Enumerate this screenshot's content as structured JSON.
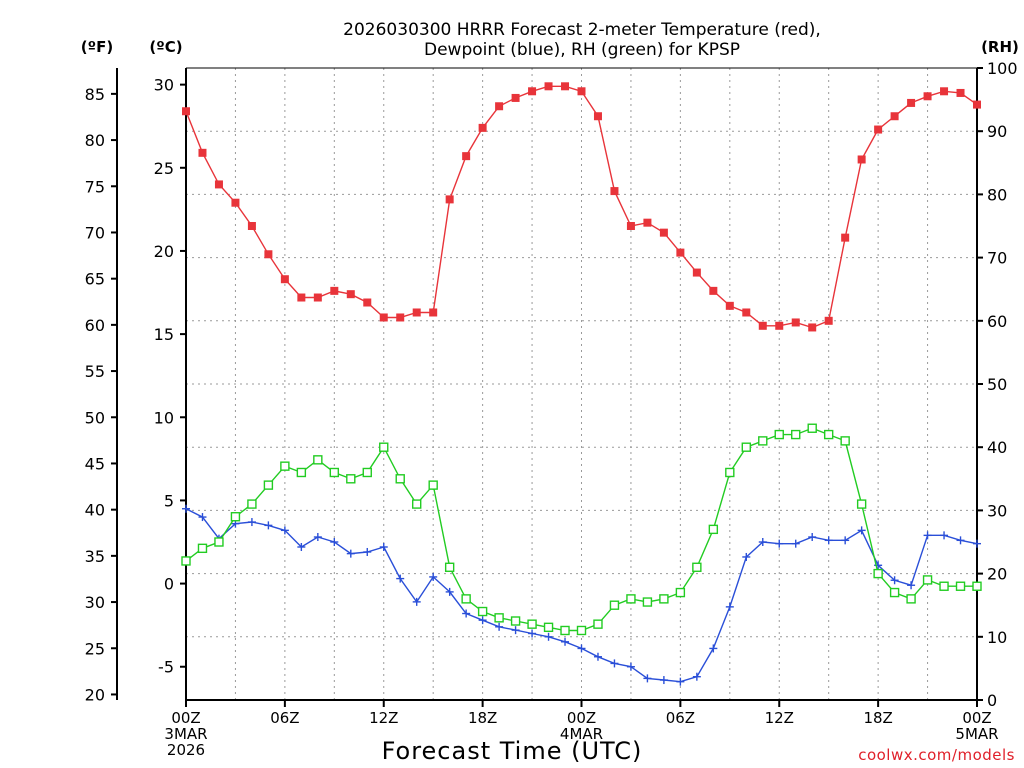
{
  "chart_data": {
    "type": "line",
    "title_line1": "2026030300 HRRR Forecast 2-meter Temperature (red),",
    "title_line2": "Dewpoint (blue), RH (green) for KPSP",
    "xlabel": "Forecast Time (UTC)",
    "credit": "coolwx.com/models",
    "unit_left_outer": "(ºF)",
    "unit_left_inner": "(ºC)",
    "unit_right": "(RH)",
    "x_range": [
      0,
      48
    ],
    "x_ticks": [
      {
        "x": 0,
        "lines": [
          "00Z",
          "3MAR",
          "2026"
        ]
      },
      {
        "x": 6,
        "lines": [
          "06Z"
        ]
      },
      {
        "x": 12,
        "lines": [
          "12Z"
        ]
      },
      {
        "x": 18,
        "lines": [
          "18Z"
        ]
      },
      {
        "x": 24,
        "lines": [
          "00Z",
          "4MAR"
        ]
      },
      {
        "x": 30,
        "lines": [
          "06Z"
        ]
      },
      {
        "x": 36,
        "lines": [
          "12Z"
        ]
      },
      {
        "x": 42,
        "lines": [
          "18Z"
        ]
      },
      {
        "x": 48,
        "lines": [
          "00Z",
          "5MAR"
        ]
      }
    ],
    "y_celsius": {
      "range": [
        -7,
        31
      ],
      "ticks": [
        -5,
        0,
        5,
        10,
        15,
        20,
        25,
        30
      ]
    },
    "y_fahrenheit": {
      "ticks": [
        20,
        25,
        30,
        35,
        40,
        45,
        50,
        55,
        60,
        65,
        70,
        75,
        80,
        85
      ]
    },
    "y_rh": {
      "range": [
        0,
        100
      ],
      "ticks": [
        0,
        10,
        20,
        30,
        40,
        50,
        60,
        70,
        80,
        90,
        100
      ]
    },
    "grid": true,
    "series": [
      {
        "name": "Temperature",
        "axis": "celsius",
        "color": "#e8343a",
        "marker": "filled-square",
        "values": [
          28.4,
          25.9,
          24.0,
          22.9,
          21.5,
          19.8,
          18.3,
          17.2,
          17.2,
          17.6,
          17.4,
          16.9,
          16.0,
          16.0,
          16.3,
          16.3,
          23.1,
          25.7,
          27.4,
          28.7,
          29.2,
          29.6,
          29.9,
          29.9,
          29.6,
          28.1,
          23.6,
          21.5,
          21.7,
          21.1,
          19.9,
          18.7,
          17.6,
          16.7,
          16.3,
          15.5,
          15.5,
          15.7,
          15.4,
          15.8,
          20.8,
          25.5,
          27.3,
          28.1,
          28.9,
          29.3,
          29.6,
          29.5,
          28.8
        ]
      },
      {
        "name": "Dewpoint",
        "axis": "celsius",
        "color": "#2a4fd8",
        "marker": "plus",
        "values": [
          4.5,
          4.0,
          2.7,
          3.6,
          3.7,
          3.5,
          3.2,
          2.2,
          2.8,
          2.5,
          1.8,
          1.9,
          2.2,
          0.3,
          -1.1,
          0.4,
          -0.5,
          -1.8,
          -2.2,
          -2.6,
          -2.8,
          -3.0,
          -3.2,
          -3.5,
          -3.9,
          -4.4,
          -4.8,
          -5.0,
          -5.7,
          -5.8,
          -5.9,
          -5.6,
          -3.9,
          -1.4,
          1.6,
          2.5,
          2.4,
          2.4,
          2.8,
          2.6,
          2.6,
          3.2,
          1.1,
          0.2,
          -0.1,
          2.9,
          2.9,
          2.6,
          2.4
        ]
      },
      {
        "name": "RH",
        "axis": "rh",
        "color": "#22cc22",
        "marker": "open-square",
        "values": [
          22,
          24,
          25,
          29,
          31,
          34,
          37,
          36,
          38,
          36,
          35,
          36,
          40,
          35,
          31,
          34,
          21,
          16,
          14,
          13,
          12.5,
          12,
          11.5,
          11,
          11,
          12,
          15,
          16,
          15.5,
          16,
          17,
          21,
          27,
          36,
          40,
          41,
          42,
          42,
          43,
          42,
          41,
          31,
          20,
          17,
          16,
          19,
          18,
          18,
          18
        ]
      }
    ]
  }
}
